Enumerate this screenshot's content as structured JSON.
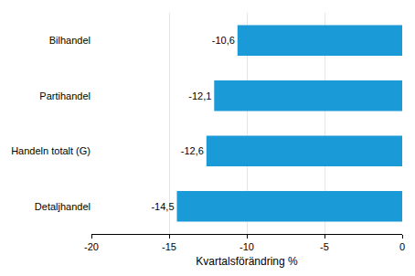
{
  "chart_data": {
    "type": "bar",
    "orientation": "horizontal",
    "categories": [
      "Bilhandel",
      "Partihandel",
      "Handeln totalt (G)",
      "Detaljhandel"
    ],
    "values": [
      -10.6,
      -12.1,
      -12.6,
      -14.5
    ],
    "value_labels": [
      "-10,6",
      "-12,1",
      "-12,6",
      "-14,5"
    ],
    "data_labels": true,
    "color": "#1a9ad6",
    "x_label": "Kvartalsförändring %",
    "xlim": [
      -20,
      0
    ],
    "xticks": [
      -20,
      -15,
      -10,
      -5,
      0
    ],
    "grid": true
  }
}
